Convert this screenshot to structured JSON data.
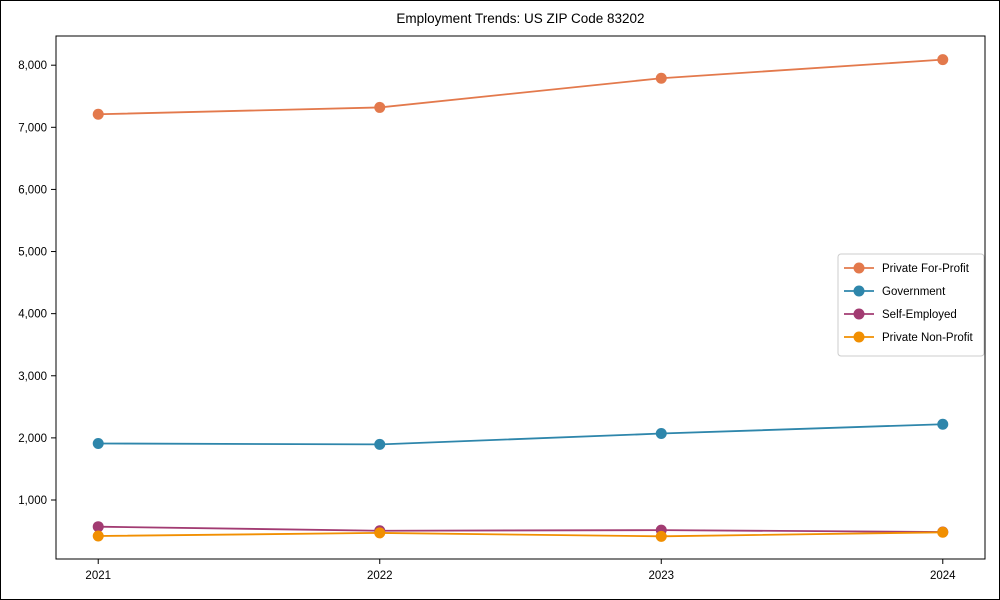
{
  "title": "Employment Trends: US ZIP Code 83202",
  "chart_data": {
    "type": "line",
    "title": "Employment Trends: US ZIP Code 83202",
    "x": [
      "2021",
      "2022",
      "2023",
      "2024"
    ],
    "xlabel": "",
    "ylabel": "",
    "series": [
      {
        "name": "Private For-Profit",
        "color": "#e3794c",
        "values": [
          7210,
          7320,
          7790,
          8090
        ]
      },
      {
        "name": "Government",
        "color": "#2e86ab",
        "values": [
          1910,
          1895,
          2070,
          2220
        ]
      },
      {
        "name": "Self-Employed",
        "color": "#a23b72",
        "values": [
          570,
          505,
          515,
          485
        ]
      },
      {
        "name": "Private Non-Profit",
        "color": "#f18f01",
        "values": [
          420,
          470,
          415,
          480
        ]
      }
    ],
    "yticks": [
      1000,
      2000,
      3000,
      4000,
      5000,
      6000,
      7000,
      8000
    ],
    "ylim": [
      50,
      8470
    ],
    "xlim": [
      2020.85,
      2024.15
    ],
    "grid": false,
    "legend_position": "center right",
    "marker": "circle",
    "axes_color": "#000000",
    "legend_border_color": "#cccccc",
    "background_color": "#ffffff"
  }
}
